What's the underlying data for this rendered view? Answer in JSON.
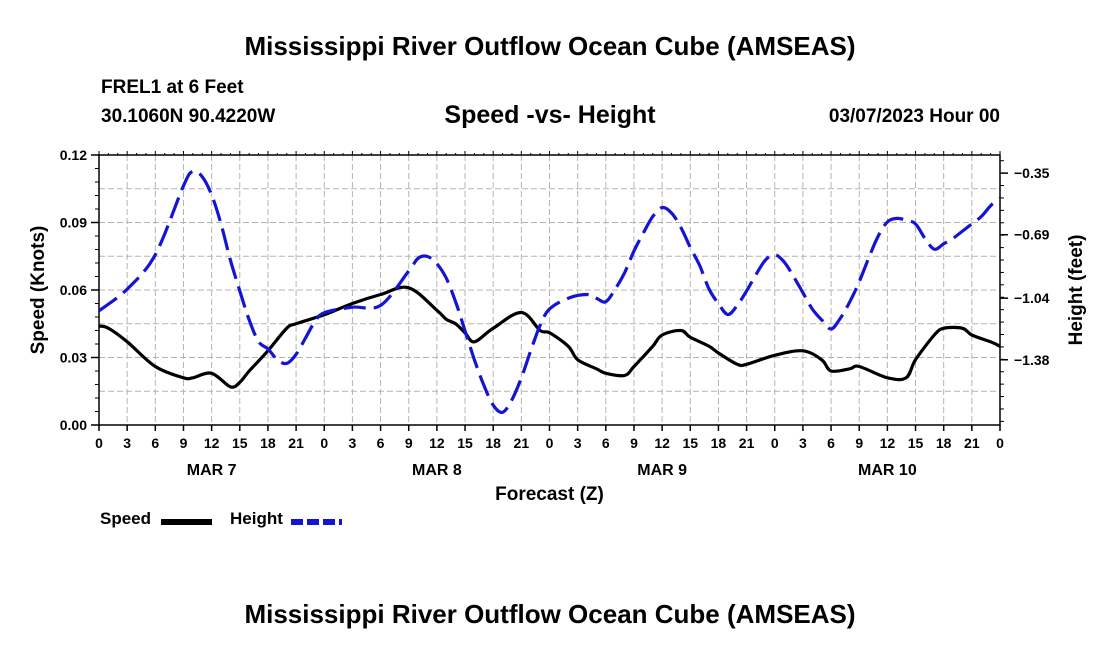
{
  "title": "Mississippi River Outflow Ocean Cube (AMSEAS)",
  "title_repeat": "Mississippi River Outflow Ocean Cube (AMSEAS)",
  "station": "FREL1 at 6 Feet",
  "coords": "30.1060N  90.4220W",
  "subtitle": "Speed -vs- Height",
  "datetime": "03/07/2023 Hour 00",
  "legend": {
    "speed": "Speed",
    "height": "Height"
  },
  "colors": {
    "speed": "#000000",
    "height": "#1414d2",
    "grid": "#b4b4b4"
  },
  "chart_data": {
    "type": "line",
    "title": "Speed -vs- Height",
    "xlabel": "Forecast (Z)",
    "ylabel": "Speed (Knots)",
    "y2label": "Height (feet)",
    "x_range_hours": [
      0,
      96
    ],
    "ylim": [
      0,
      0.12
    ],
    "y2lim": [
      -1.74,
      -0.25
    ],
    "yticks": [
      0.0,
      0.03,
      0.06,
      0.09,
      0.12
    ],
    "ytick_labels": [
      "0.00",
      "0.03",
      "0.06",
      "0.09",
      "0.12"
    ],
    "y2ticks": [
      -1.38,
      -1.04,
      -0.69,
      -0.35
    ],
    "y2tick_labels": [
      "-1.38",
      "-1.04",
      "-0.69",
      "-0.35"
    ],
    "xtick_hours": [
      0,
      3,
      6,
      9,
      12,
      15,
      18,
      21,
      24,
      27,
      30,
      33,
      36,
      39,
      42,
      45,
      48,
      51,
      54,
      57,
      60,
      63,
      66,
      69,
      72,
      75,
      78,
      81,
      84,
      87,
      90,
      93,
      96
    ],
    "xtick_labels": [
      "0",
      "3",
      "6",
      "9",
      "12",
      "15",
      "18",
      "21",
      "0",
      "3",
      "6",
      "9",
      "12",
      "15",
      "18",
      "21",
      "0",
      "3",
      "6",
      "9",
      "12",
      "15",
      "18",
      "21",
      "0",
      "3",
      "6",
      "9",
      "12",
      "15",
      "18",
      "21",
      "0"
    ],
    "day_labels": [
      {
        "label": "MAR 7",
        "hour": 12
      },
      {
        "label": "MAR 8",
        "hour": 36
      },
      {
        "label": "MAR 9",
        "hour": 60
      },
      {
        "label": "MAR 10",
        "hour": 84
      }
    ],
    "grid": true,
    "series": [
      {
        "name": "Speed",
        "axis": "left",
        "style": "solid",
        "x": [
          0,
          1,
          3,
          6,
          9,
          10,
          12,
          14,
          15,
          16,
          18,
          20,
          21,
          24,
          27,
          30,
          33,
          36,
          37,
          38,
          39,
          40,
          42,
          45,
          47,
          48,
          50,
          51,
          53,
          54,
          56,
          57,
          59,
          60,
          62,
          63,
          65,
          66,
          68,
          69,
          72,
          75,
          77,
          78,
          80,
          81,
          84,
          86,
          87,
          89,
          90,
          92,
          93,
          95,
          96
        ],
        "values": [
          0.044,
          0.043,
          0.037,
          0.026,
          0.021,
          0.021,
          0.023,
          0.017,
          0.019,
          0.024,
          0.033,
          0.043,
          0.045,
          0.049,
          0.054,
          0.058,
          0.061,
          0.051,
          0.047,
          0.045,
          0.041,
          0.037,
          0.043,
          0.05,
          0.042,
          0.041,
          0.035,
          0.029,
          0.025,
          0.023,
          0.022,
          0.026,
          0.035,
          0.04,
          0.042,
          0.039,
          0.035,
          0.032,
          0.027,
          0.027,
          0.031,
          0.033,
          0.029,
          0.024,
          0.025,
          0.026,
          0.021,
          0.021,
          0.029,
          0.04,
          0.043,
          0.043,
          0.04,
          0.037,
          0.035
        ]
      },
      {
        "name": "Height",
        "axis": "right",
        "style": "dashed",
        "x": [
          0,
          3,
          6,
          9,
          10,
          11,
          12,
          13,
          14,
          15,
          16,
          17,
          18,
          19,
          20,
          21,
          22,
          23,
          24,
          27,
          30,
          33,
          34,
          35,
          36,
          37,
          38,
          39,
          40,
          41,
          42,
          43,
          44,
          45,
          46,
          47,
          48,
          50,
          52,
          53,
          54,
          55,
          56,
          57,
          58,
          59,
          60,
          61,
          62,
          63,
          64,
          65,
          66,
          67,
          68,
          69,
          70,
          71,
          72,
          73,
          74,
          75,
          76,
          77,
          78,
          79,
          80,
          81,
          82,
          83,
          84,
          85,
          86,
          87,
          88,
          89,
          90,
          91,
          92,
          93,
          94,
          95,
          96
        ],
        "values": [
          -1.11,
          -0.99,
          -0.8,
          -0.42,
          -0.34,
          -0.37,
          -0.47,
          -0.63,
          -0.83,
          -1.0,
          -1.16,
          -1.28,
          -1.32,
          -1.38,
          -1.4,
          -1.35,
          -1.26,
          -1.17,
          -1.12,
          -1.09,
          -1.08,
          -0.89,
          -0.82,
          -0.81,
          -0.85,
          -0.93,
          -1.06,
          -1.22,
          -1.38,
          -1.52,
          -1.63,
          -1.67,
          -1.6,
          -1.48,
          -1.33,
          -1.19,
          -1.1,
          -1.04,
          -1.02,
          -1.04,
          -1.06,
          -0.99,
          -0.9,
          -0.78,
          -0.68,
          -0.59,
          -0.54,
          -0.57,
          -0.65,
          -0.76,
          -0.86,
          -0.99,
          -1.07,
          -1.13,
          -1.08,
          -1.0,
          -0.91,
          -0.83,
          -0.8,
          -0.84,
          -0.92,
          -1.01,
          -1.1,
          -1.16,
          -1.21,
          -1.15,
          -1.06,
          -0.95,
          -0.82,
          -0.7,
          -0.62,
          -0.6,
          -0.61,
          -0.63,
          -0.71,
          -0.77,
          -0.74,
          -0.71,
          -0.67,
          -0.63,
          -0.59,
          -0.53,
          -0.49
        ]
      }
    ]
  }
}
